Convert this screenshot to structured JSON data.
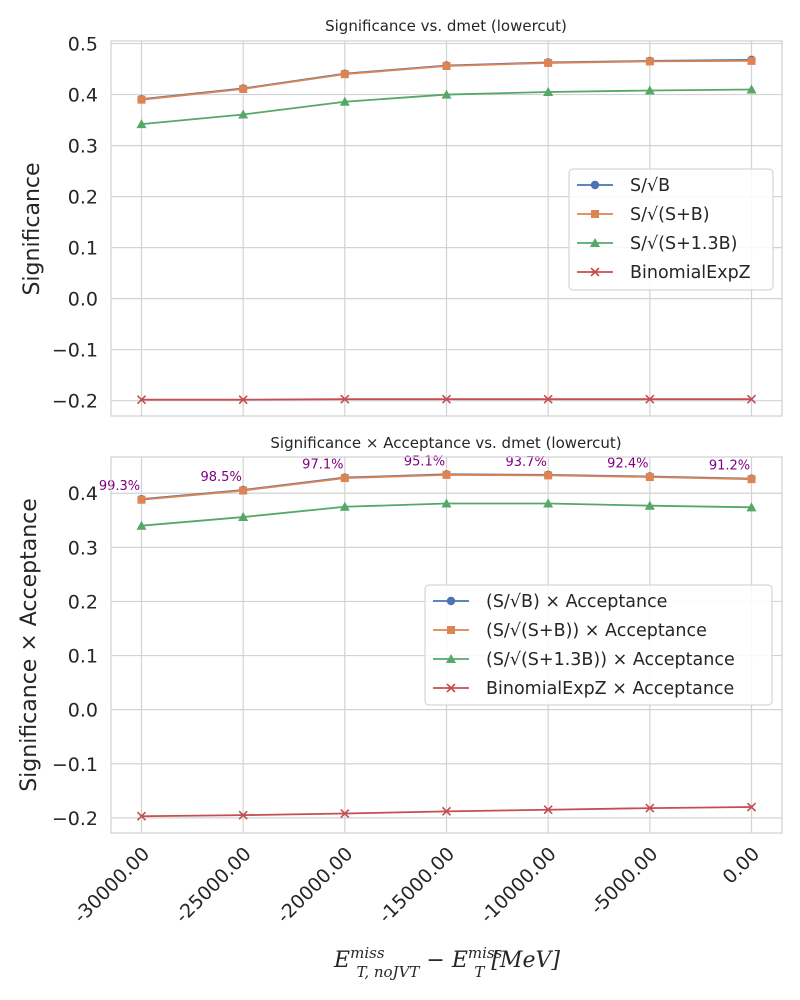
{
  "chart_data": [
    {
      "type": "line",
      "title": "Significance vs. dmet (lowercut)",
      "ylabel": "Significance",
      "x": [
        -30000,
        -25000,
        -20000,
        -15000,
        -10000,
        -5000,
        0
      ],
      "ylim": [
        -0.23,
        0.505
      ],
      "yticks": [
        "0.5",
        "0.4",
        "0.3",
        "0.2",
        "0.1",
        "0.0",
        "−0.1",
        "−0.2"
      ],
      "ytick_values": [
        0.5,
        0.4,
        0.3,
        0.2,
        0.1,
        0.0,
        -0.1,
        -0.2
      ],
      "grid": true,
      "legend_position": "center-right",
      "series": [
        {
          "name": "S/√B",
          "color": "#4c72b0",
          "marker": "circle",
          "values": [
            0.391,
            0.412,
            0.441,
            0.457,
            0.463,
            0.466,
            0.468
          ]
        },
        {
          "name": "S/√(S+B)",
          "color": "#dd8452",
          "marker": "square",
          "values": [
            0.39,
            0.411,
            0.44,
            0.456,
            0.462,
            0.465,
            0.466
          ]
        },
        {
          "name": "S/√(S+1.3B)",
          "color": "#55a868",
          "marker": "triangle",
          "values": [
            0.342,
            0.361,
            0.386,
            0.4,
            0.405,
            0.408,
            0.41
          ]
        },
        {
          "name": "BinomialExpZ",
          "color": "#c44e52",
          "marker": "x",
          "values": [
            -0.198,
            -0.198,
            -0.197,
            -0.197,
            -0.197,
            -0.197,
            -0.197
          ]
        }
      ]
    },
    {
      "type": "line",
      "title": "Significance × Acceptance vs. dmet (lowercut)",
      "ylabel": "Significance × Acceptance",
      "x": [
        -30000,
        -25000,
        -20000,
        -15000,
        -10000,
        -5000,
        0
      ],
      "xticks": [
        "-30000.00",
        "-25000.00",
        "-20000.00",
        "-15000.00",
        "-10000.00",
        "-5000.00",
        "0.00"
      ],
      "ylim": [
        -0.228,
        0.467
      ],
      "yticks": [
        "0.4",
        "0.3",
        "0.2",
        "0.1",
        "0.0",
        "−0.1",
        "−0.2"
      ],
      "ytick_values": [
        0.4,
        0.3,
        0.2,
        0.1,
        0.0,
        -0.1,
        -0.2
      ],
      "grid": true,
      "legend_position": "center-right",
      "annotations": [
        "99.3%",
        "98.5%",
        "97.1%",
        "95.1%",
        "93.7%",
        "92.4%",
        "91.2%"
      ],
      "annotation_color": "#800080",
      "series": [
        {
          "name": "(S/√B) × Acceptance",
          "color": "#4c72b0",
          "marker": "circle",
          "values": [
            0.389,
            0.406,
            0.429,
            0.435,
            0.434,
            0.431,
            0.427
          ]
        },
        {
          "name": "(S/√(S+B)) × Acceptance",
          "color": "#dd8452",
          "marker": "square",
          "values": [
            0.388,
            0.405,
            0.428,
            0.434,
            0.433,
            0.43,
            0.426
          ]
        },
        {
          "name": "(S/√(S+1.3B)) × Acceptance",
          "color": "#55a868",
          "marker": "triangle",
          "values": [
            0.34,
            0.356,
            0.375,
            0.381,
            0.381,
            0.377,
            0.374
          ]
        },
        {
          "name": "BinomialExpZ × Acceptance",
          "color": "#c44e52",
          "marker": "x",
          "values": [
            -0.197,
            -0.195,
            -0.192,
            -0.188,
            -0.185,
            -0.182,
            -0.18
          ]
        }
      ]
    }
  ],
  "xlabel_parts": {
    "e": "E",
    "miss": "miss",
    "sub1": "T, noJVT",
    "minus": " − ",
    "sub2": "T",
    "unit": " [MeV]"
  }
}
